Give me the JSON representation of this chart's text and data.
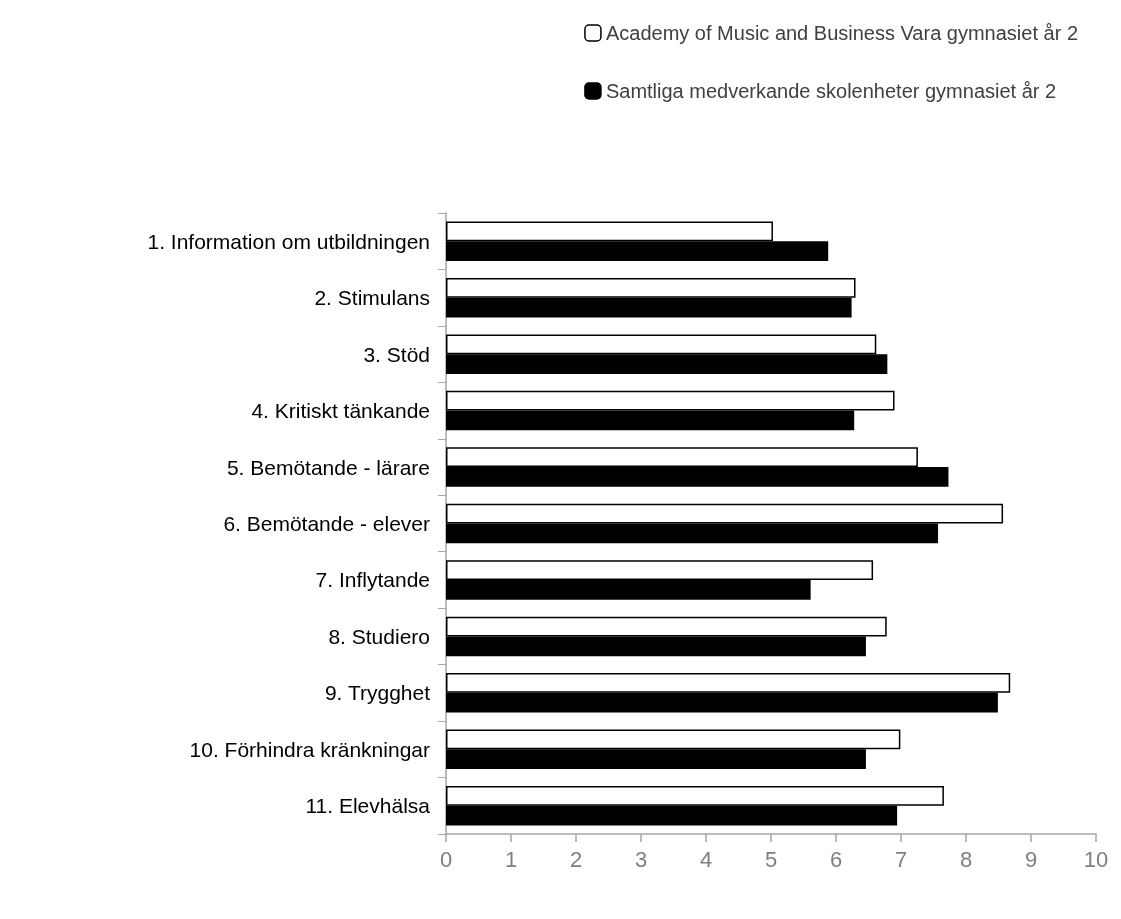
{
  "chart_data": {
    "type": "bar",
    "orientation": "horizontal",
    "categories": [
      "1. Information om utbildningen",
      "2. Stimulans",
      "3. Stöd",
      "4. Kritiskt tänkande",
      "5. Bemötande - lärare",
      "6. Bemötande - elever",
      "7. Inflytande",
      "8. Studiero",
      "9. Trygghet",
      "10. Förhindra kränkningar",
      "11. Elevhälsa"
    ],
    "series": [
      {
        "name": "Academy of Music and Business Vara gymnasiet år 2",
        "color": "#ffffff",
        "values": [
          5.03,
          6.3,
          6.62,
          6.9,
          7.26,
          8.57,
          6.57,
          6.78,
          8.68,
          6.99,
          7.66
        ]
      },
      {
        "name": "Samtliga medverkande skolenheter gymnasiet år 2",
        "color": "#000000",
        "values": [
          5.88,
          6.24,
          6.79,
          6.28,
          7.73,
          7.57,
          5.61,
          6.46,
          8.49,
          6.46,
          6.94
        ]
      }
    ],
    "xlim": [
      0,
      10
    ],
    "xticks": [
      0,
      1,
      2,
      3,
      4,
      5,
      6,
      7,
      8,
      9,
      10
    ],
    "grid": false,
    "legend": "top right"
  }
}
